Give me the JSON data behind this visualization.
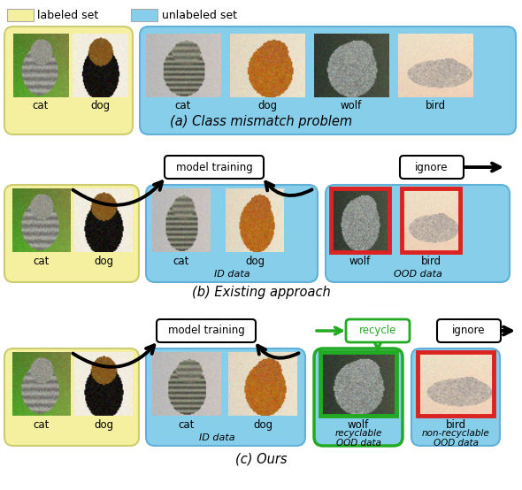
{
  "legend": {
    "labeled_color": "#f5f0a0",
    "unlabeled_color": "#87ceeb",
    "labeled_text": "labeled set",
    "unlabeled_text": "unlabeled set"
  },
  "sections": {
    "a_title": "(a) Class mismatch problem",
    "b_title": "(b) Existing approach",
    "c_title": "(c) Ours"
  },
  "colors": {
    "yellow_bg": "#f5f0a0",
    "blue_bg": "#87ceeb",
    "red_border": "#dd2222",
    "green_border": "#22aa22",
    "black": "#000000",
    "white": "#ffffff"
  },
  "layout": {
    "fig_w": 5.9,
    "fig_h": 5.54,
    "dpi": 100
  }
}
